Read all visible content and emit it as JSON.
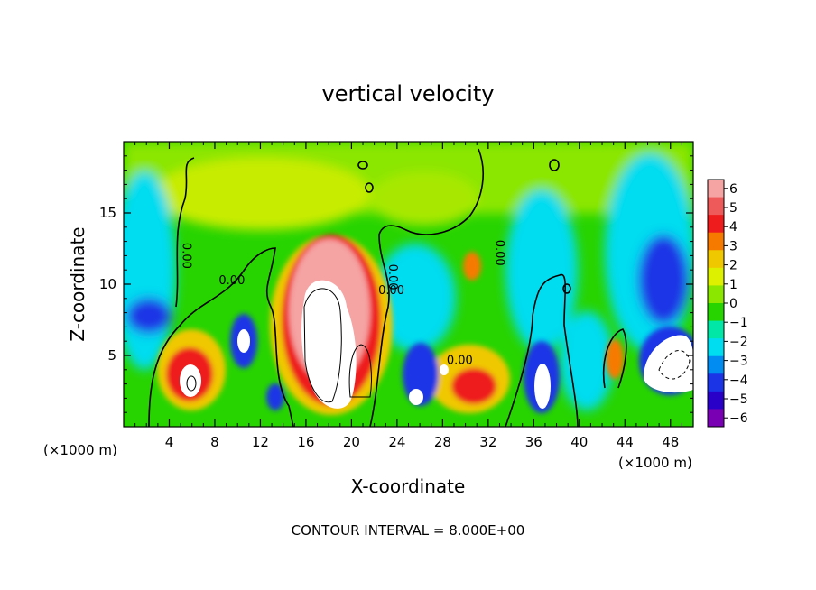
{
  "chart_data": {
    "type": "heatmap",
    "title": "vertical velocity",
    "xlabel": "X-coordinate",
    "ylabel": "Z-coordinate",
    "x_unit_label": "(×1000 m)",
    "footer": "CONTOUR INTERVAL = 8.000E+00",
    "xlim": [
      0,
      50
    ],
    "ylim": [
      0,
      20
    ],
    "x_ticks": [
      4,
      8,
      12,
      16,
      20,
      24,
      28,
      32,
      36,
      40,
      44,
      48
    ],
    "y_ticks": [
      5,
      10,
      15
    ],
    "contour_labels": [
      {
        "text": "0.00",
        "x": 5.2,
        "y": 12.0,
        "rotate": 90
      },
      {
        "text": "0.00",
        "x": 9.5,
        "y": 10.0,
        "rotate": 0
      },
      {
        "text": "0.00",
        "x": 23.3,
        "y": 10.5,
        "rotate": 90
      },
      {
        "text": "0.00",
        "x": 23.5,
        "y": 9.3,
        "rotate": 0
      },
      {
        "text": "0.00",
        "x": 29.5,
        "y": 4.4,
        "rotate": 0
      },
      {
        "text": "0.00",
        "x": 32.7,
        "y": 12.2,
        "rotate": 90
      }
    ],
    "colorbar": {
      "levels": [
        6,
        5,
        4,
        3,
        2,
        1,
        0,
        -1,
        -2,
        -3,
        -4,
        -5,
        -6
      ],
      "colors": [
        "#f5a3a3",
        "#ee5a5a",
        "#ee1c1c",
        "#f77a00",
        "#f0c800",
        "#dcf000",
        "#8be600",
        "#27d400",
        "#00e7a6",
        "#00dcf0",
        "#008cf0",
        "#1a34e6",
        "#2800c8",
        "#7a00b4"
      ]
    },
    "field_features": [
      {
        "kind": "updraft",
        "x": 18,
        "z": 7,
        "max": 14,
        "note": "strong core exceeding colorbar"
      },
      {
        "kind": "updraft",
        "x": 6,
        "z": 3,
        "max": 8
      },
      {
        "kind": "updraft",
        "x": 20.5,
        "z": 3.5,
        "max": 10
      },
      {
        "kind": "updraft",
        "x": 30.5,
        "z": 3,
        "max": 5
      },
      {
        "kind": "downdraft",
        "x": 26,
        "z": 3,
        "min": -8
      },
      {
        "kind": "downdraft",
        "x": 36.5,
        "z": 3,
        "min": -8
      },
      {
        "kind": "downdraft",
        "x": 47,
        "z": 4.5,
        "min": -10
      },
      {
        "kind": "downdraft",
        "x": 10.5,
        "z": 6,
        "min": -7
      }
    ]
  }
}
